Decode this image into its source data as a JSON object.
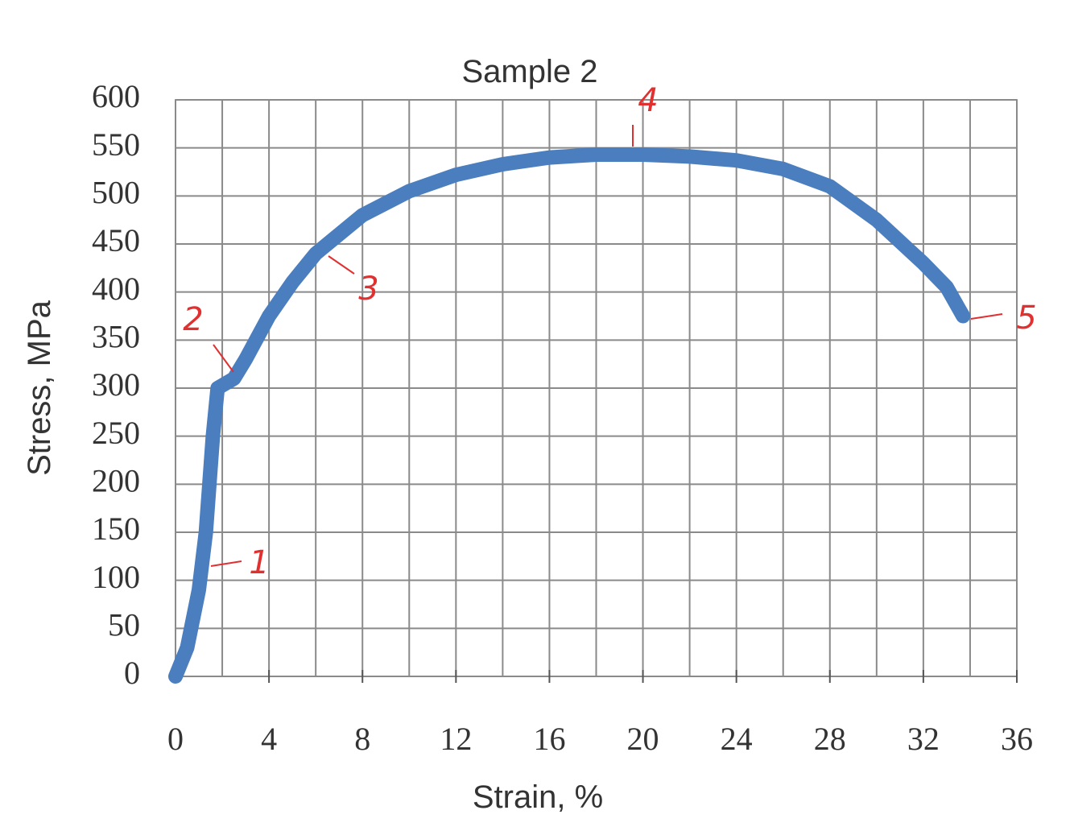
{
  "chart_data": {
    "type": "line",
    "title": "Sample 2",
    "x_label": "Strain, %",
    "y_label": "Stress, MPa",
    "x": [
      0,
      0.5,
      1,
      1.3,
      1.6,
      1.8,
      2.5,
      3,
      4,
      5,
      6,
      8,
      10,
      12,
      14,
      16,
      18,
      20,
      22,
      24,
      26,
      28,
      30,
      32,
      33,
      33.7
    ],
    "values": [
      0,
      30,
      90,
      150,
      250,
      300,
      310,
      330,
      375,
      410,
      440,
      480,
      505,
      522,
      533,
      540,
      543,
      543,
      541,
      537,
      528,
      510,
      475,
      430,
      405,
      375
    ],
    "color": "#4a7ebf",
    "xlim": [
      0,
      36
    ],
    "xticks": [
      0,
      4,
      8,
      12,
      16,
      20,
      24,
      28,
      32,
      36
    ],
    "ylim": [
      0,
      600
    ],
    "yticks": [
      0,
      50,
      100,
      150,
      200,
      250,
      300,
      350,
      400,
      450,
      500,
      550,
      600
    ],
    "grid": true,
    "annotations": [
      "1",
      "2",
      "3",
      "4",
      "5"
    ]
  }
}
